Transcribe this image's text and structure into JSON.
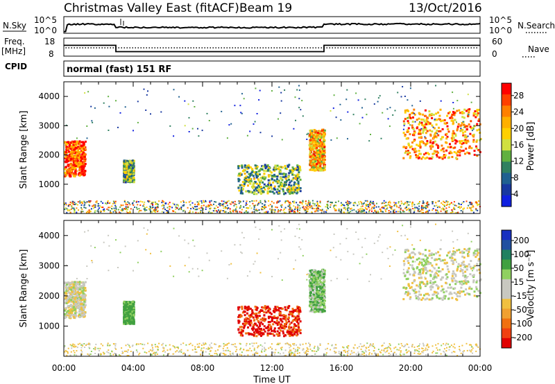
{
  "header": {
    "title": "Christmas Valley East (fitACF)",
    "beam": "Beam 19",
    "date": "13/Oct/2016"
  },
  "noise_panel": {
    "left_label": "N.Sky",
    "right_label": "N.Search",
    "left_ticks": [
      "10^5",
      "10^0"
    ],
    "right_ticks": [
      "10^5",
      "10^0"
    ]
  },
  "freq_panel": {
    "left_label_1": "Freq.",
    "left_label_2": "[MHz]",
    "right_label": "Nave",
    "left_ticks": [
      "18",
      "8"
    ],
    "right_ticks": [
      "60",
      "0"
    ]
  },
  "cpid_panel": {
    "label": "CPID",
    "text": "normal (fast) 151 RF"
  },
  "power_panel": {
    "ylabel": "Slant Range [km]",
    "yticks": [
      "4000",
      "3000",
      "2000",
      "1000"
    ],
    "colorbar_label": "Power [dB]",
    "colorbar_ticks": [
      "28",
      "24",
      "20",
      "16",
      "12",
      "8",
      "4"
    ],
    "colorbar_colors": [
      "#ff0000",
      "#ff4000",
      "#ff8000",
      "#ffb000",
      "#ffd000",
      "#d0e040",
      "#60b040",
      "#308060",
      "#206090",
      "#1838a0",
      "#1020e0"
    ]
  },
  "velocity_panel": {
    "ylabel": "Slant Range [km]",
    "yticks": [
      "4000",
      "3000",
      "2000",
      "1000"
    ],
    "colorbar_label": "Velocity [m s⁻¹]",
    "colorbar_ticks": [
      "200",
      "100",
      "50",
      "15",
      "-15",
      "-50",
      "-100",
      "-200"
    ],
    "colorbar_colors": [
      "#1830c0",
      "#2050a0",
      "#208060",
      "#40a040",
      "#90d060",
      "#c8c8c0",
      "#c8c8c0",
      "#f0c040",
      "#f0a030",
      "#f07010",
      "#f04010",
      "#e00000"
    ]
  },
  "xaxis": {
    "label": "Time UT",
    "ticks": [
      "00:00",
      "04:00",
      "08:00",
      "12:00",
      "16:00",
      "20:00",
      "00:00"
    ]
  },
  "chart_data": {
    "type": "heatmap",
    "title": "Christmas Valley East (fitACF)",
    "subtitle": "Beam 19",
    "date": "13/Oct/2016",
    "xlabel": "Time UT",
    "x_range_hours": [
      0,
      24
    ],
    "frequency_MHz": [
      {
        "start_h": 0.0,
        "end_h": 3.0,
        "value": 14
      },
      {
        "start_h": 3.0,
        "end_h": 15.0,
        "value": 10.5
      },
      {
        "start_h": 15.0,
        "end_h": 24.0,
        "value": 14
      }
    ],
    "power_dB_range": [
      0,
      30
    ],
    "velocity_range": [
      -250,
      250
    ],
    "ylim_km": [
      0,
      4500
    ],
    "echo_regions": [
      {
        "name": "early",
        "t_start": 0.0,
        "t_end": 1.2,
        "range_lo": 1300,
        "range_hi": 2500,
        "power": 26,
        "velocity": -5
      },
      {
        "name": "04h",
        "t_start": 3.4,
        "t_end": 4.0,
        "range_lo": 1100,
        "range_hi": 1850,
        "power": 12,
        "velocity": 45
      },
      {
        "name": "midday",
        "t_start": 10.0,
        "t_end": 13.6,
        "range_lo": 700,
        "range_hi": 1700,
        "power": 12,
        "velocity": -180
      },
      {
        "name": "15h",
        "t_start": 14.1,
        "t_end": 15.0,
        "range_lo": 1500,
        "range_hi": 2900,
        "power": 20,
        "velocity": 30
      },
      {
        "name": "evening",
        "t_start": 19.5,
        "t_end": 24.0,
        "range_lo": 1900,
        "range_hi": 3600,
        "power": 22,
        "velocity": 0
      }
    ]
  }
}
